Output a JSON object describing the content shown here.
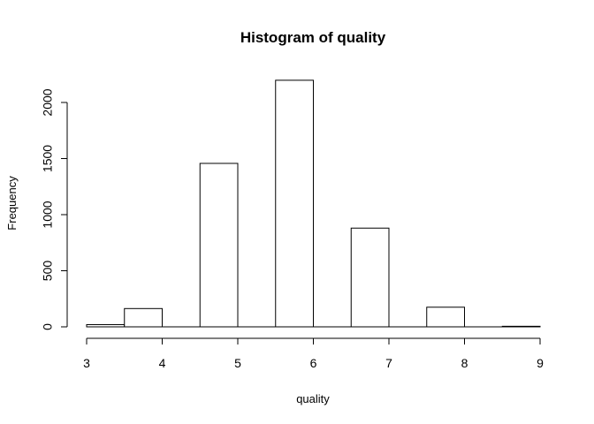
{
  "chart_data": {
    "type": "bar",
    "title": "Histogram of quality",
    "xlabel": "quality",
    "ylabel": "Frequency",
    "xlim": [
      3,
      9
    ],
    "ylim": [
      0,
      2200
    ],
    "x_ticks": [
      "3",
      "4",
      "5",
      "6",
      "7",
      "8",
      "9"
    ],
    "y_ticks": [
      "0",
      "500",
      "1000",
      "1500",
      "2000"
    ],
    "bins": [
      {
        "start": 3.0,
        "end": 3.5,
        "value": 20
      },
      {
        "start": 3.5,
        "end": 4.0,
        "value": 163
      },
      {
        "start": 4.0,
        "end": 4.5,
        "value": 0
      },
      {
        "start": 4.5,
        "end": 5.0,
        "value": 1457
      },
      {
        "start": 5.0,
        "end": 5.5,
        "value": 0
      },
      {
        "start": 5.5,
        "end": 6.0,
        "value": 2198
      },
      {
        "start": 6.0,
        "end": 6.5,
        "value": 0
      },
      {
        "start": 6.5,
        "end": 7.0,
        "value": 880
      },
      {
        "start": 7.0,
        "end": 7.5,
        "value": 0
      },
      {
        "start": 7.5,
        "end": 8.0,
        "value": 175
      },
      {
        "start": 8.0,
        "end": 8.5,
        "value": 0
      },
      {
        "start": 8.5,
        "end": 9.0,
        "value": 5
      }
    ],
    "colors": {
      "bar_fill": "#ffffff",
      "bar_stroke": "#000000",
      "axis": "#000000"
    },
    "grid": false
  }
}
